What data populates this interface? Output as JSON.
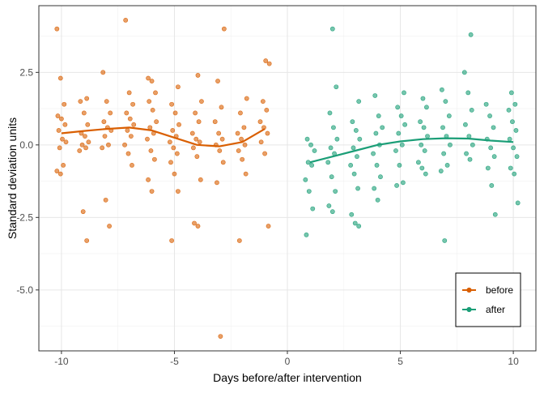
{
  "chart_data": {
    "type": "scatter",
    "title": "",
    "xlabel": "Days before/after intervention",
    "ylabel": "Standard deviation units",
    "xlim": [
      -11,
      11
    ],
    "ylim": [
      -7.1,
      4.8
    ],
    "x_ticks": [
      -10,
      -5,
      0,
      5,
      10
    ],
    "x_tick_labels": [
      "-10",
      "-5",
      "0",
      "5",
      "10"
    ],
    "y_ticks": [
      -5,
      -2.5,
      0,
      2.5
    ],
    "y_tick_labels": [
      "-5.0",
      "-2.5",
      "0.0",
      "2.5"
    ],
    "grid": true,
    "legend": {
      "placement": "bottom-right",
      "entries": [
        "before",
        "after"
      ]
    },
    "series": [
      {
        "name": "before",
        "color": "#D95F02",
        "points": [
          [
            -10,
            4.0
          ],
          [
            -10,
            2.3
          ],
          [
            -10,
            1.4
          ],
          [
            -10,
            1.0
          ],
          [
            -10,
            0.9
          ],
          [
            -10,
            0.7
          ],
          [
            -10,
            0.5
          ],
          [
            -10,
            0.2
          ],
          [
            -10,
            0.1
          ],
          [
            -10,
            -0.1
          ],
          [
            -10,
            -0.7
          ],
          [
            -10,
            -0.9
          ],
          [
            -10,
            -1.0
          ],
          [
            -9,
            1.6
          ],
          [
            -9,
            1.5
          ],
          [
            -9,
            1.1
          ],
          [
            -9,
            0.7
          ],
          [
            -9,
            0.4
          ],
          [
            -9,
            0.3
          ],
          [
            -9,
            0.1
          ],
          [
            -9,
            0.0
          ],
          [
            -9,
            -0.1
          ],
          [
            -9,
            -0.2
          ],
          [
            -9,
            -2.3
          ],
          [
            -9,
            -3.3
          ],
          [
            -8,
            2.5
          ],
          [
            -8,
            1.5
          ],
          [
            -8,
            1.1
          ],
          [
            -8,
            0.8
          ],
          [
            -8,
            0.6
          ],
          [
            -8,
            0.5
          ],
          [
            -8,
            0.3
          ],
          [
            -8,
            0.0
          ],
          [
            -8,
            -0.1
          ],
          [
            -8,
            -1.9
          ],
          [
            -8,
            -2.8
          ],
          [
            -7,
            4.3
          ],
          [
            -7,
            1.8
          ],
          [
            -7,
            1.4
          ],
          [
            -7,
            1.1
          ],
          [
            -7,
            0.9
          ],
          [
            -7,
            0.7
          ],
          [
            -7,
            0.5
          ],
          [
            -7,
            0.3
          ],
          [
            -7,
            0.0
          ],
          [
            -7,
            -0.3
          ],
          [
            -7,
            -0.7
          ],
          [
            -6,
            2.3
          ],
          [
            -6,
            2.2
          ],
          [
            -6,
            1.8
          ],
          [
            -6,
            1.5
          ],
          [
            -6,
            1.2
          ],
          [
            -6,
            0.8
          ],
          [
            -6,
            0.6
          ],
          [
            -6,
            0.4
          ],
          [
            -6,
            0.2
          ],
          [
            -6,
            -0.2
          ],
          [
            -6,
            -0.5
          ],
          [
            -6,
            -1.2
          ],
          [
            -6,
            -1.6
          ],
          [
            -5,
            2.0
          ],
          [
            -5,
            1.4
          ],
          [
            -5,
            1.1
          ],
          [
            -5,
            0.7
          ],
          [
            -5,
            0.5
          ],
          [
            -5,
            0.3
          ],
          [
            -5,
            0.1
          ],
          [
            -5,
            -0.1
          ],
          [
            -5,
            -0.3
          ],
          [
            -5,
            -0.6
          ],
          [
            -5,
            -1.0
          ],
          [
            -5,
            -1.6
          ],
          [
            -5,
            -3.3
          ],
          [
            -4,
            2.4
          ],
          [
            -4,
            1.5
          ],
          [
            -4,
            1.1
          ],
          [
            -4,
            0.8
          ],
          [
            -4,
            0.4
          ],
          [
            -4,
            0.2
          ],
          [
            -4,
            0.1
          ],
          [
            -4,
            -0.1
          ],
          [
            -4,
            -0.4
          ],
          [
            -4,
            -1.2
          ],
          [
            -4,
            -2.7
          ],
          [
            -4,
            -2.8
          ],
          [
            -3,
            4.0
          ],
          [
            -3,
            2.2
          ],
          [
            -3,
            1.3
          ],
          [
            -3,
            0.8
          ],
          [
            -3,
            0.4
          ],
          [
            -3,
            0.2
          ],
          [
            -3,
            0.0
          ],
          [
            -3,
            -0.2
          ],
          [
            -3,
            -0.6
          ],
          [
            -3,
            -1.3
          ],
          [
            -3,
            -6.6
          ],
          [
            -2,
            1.6
          ],
          [
            -2,
            1.1
          ],
          [
            -2,
            0.6
          ],
          [
            -2,
            0.4
          ],
          [
            -2,
            0.2
          ],
          [
            -2,
            0.0
          ],
          [
            -2,
            -0.2
          ],
          [
            -2,
            -0.5
          ],
          [
            -2,
            -1.0
          ],
          [
            -2,
            -3.3
          ],
          [
            -1,
            2.9
          ],
          [
            -1,
            2.8
          ],
          [
            -1,
            1.5
          ],
          [
            -1,
            1.2
          ],
          [
            -1,
            0.8
          ],
          [
            -1,
            0.6
          ],
          [
            -1,
            0.4
          ],
          [
            -1,
            0.1
          ],
          [
            -1,
            -0.3
          ],
          [
            -1,
            -2.8
          ]
        ],
        "trend": [
          [
            -10,
            0.4
          ],
          [
            -9,
            0.48
          ],
          [
            -8,
            0.55
          ],
          [
            -7,
            0.6
          ],
          [
            -6,
            0.5
          ],
          [
            -5,
            0.25
          ],
          [
            -4,
            0.0
          ],
          [
            -3,
            -0.05
          ],
          [
            -2,
            0.1
          ],
          [
            -1,
            0.55
          ]
        ]
      },
      {
        "name": "after",
        "color": "#1B9E77",
        "points": [
          [
            1,
            0.2
          ],
          [
            1,
            0.0
          ],
          [
            1,
            -0.2
          ],
          [
            1,
            -0.6
          ],
          [
            1,
            -0.7
          ],
          [
            1,
            -1.2
          ],
          [
            1,
            -1.6
          ],
          [
            1,
            -2.2
          ],
          [
            1,
            -3.1
          ],
          [
            2,
            4.0
          ],
          [
            2,
            2.0
          ],
          [
            2,
            1.1
          ],
          [
            2,
            0.6
          ],
          [
            2,
            0.2
          ],
          [
            2,
            -0.1
          ],
          [
            2,
            -0.3
          ],
          [
            2,
            -0.6
          ],
          [
            2,
            -1.1
          ],
          [
            2,
            -1.6
          ],
          [
            2,
            -2.1
          ],
          [
            2,
            -2.3
          ],
          [
            3,
            1.5
          ],
          [
            3,
            0.8
          ],
          [
            3,
            0.5
          ],
          [
            3,
            0.2
          ],
          [
            3,
            -0.1
          ],
          [
            3,
            -0.4
          ],
          [
            3,
            -0.7
          ],
          [
            3,
            -1.0
          ],
          [
            3,
            -1.5
          ],
          [
            3,
            -2.4
          ],
          [
            3,
            -2.7
          ],
          [
            3,
            -2.8
          ],
          [
            4,
            1.7
          ],
          [
            4,
            1.0
          ],
          [
            4,
            0.6
          ],
          [
            4,
            0.4
          ],
          [
            4,
            0.0
          ],
          [
            4,
            -0.3
          ],
          [
            4,
            -0.7
          ],
          [
            4,
            -1.1
          ],
          [
            4,
            -1.5
          ],
          [
            4,
            -1.9
          ],
          [
            5,
            1.8
          ],
          [
            5,
            1.3
          ],
          [
            5,
            1.0
          ],
          [
            5,
            0.7
          ],
          [
            5,
            0.4
          ],
          [
            5,
            0.0
          ],
          [
            5,
            -0.2
          ],
          [
            5,
            -0.7
          ],
          [
            5,
            -1.3
          ],
          [
            5,
            -1.4
          ],
          [
            6,
            1.6
          ],
          [
            6,
            1.3
          ],
          [
            6,
            0.8
          ],
          [
            6,
            0.6
          ],
          [
            6,
            0.3
          ],
          [
            6,
            0.0
          ],
          [
            6,
            -0.2
          ],
          [
            6,
            -0.6
          ],
          [
            6,
            -0.8
          ],
          [
            6,
            -1.0
          ],
          [
            7,
            1.9
          ],
          [
            7,
            1.5
          ],
          [
            7,
            1.0
          ],
          [
            7,
            0.6
          ],
          [
            7,
            0.3
          ],
          [
            7,
            0.0
          ],
          [
            7,
            -0.3
          ],
          [
            7,
            -0.7
          ],
          [
            7,
            -0.9
          ],
          [
            7,
            -3.3
          ],
          [
            8,
            3.8
          ],
          [
            8,
            2.5
          ],
          [
            8,
            1.8
          ],
          [
            8,
            1.2
          ],
          [
            8,
            0.7
          ],
          [
            8,
            0.3
          ],
          [
            8,
            0.0
          ],
          [
            8,
            -0.3
          ],
          [
            8,
            -0.5
          ],
          [
            9,
            1.4
          ],
          [
            9,
            1.0
          ],
          [
            9,
            0.6
          ],
          [
            9,
            0.2
          ],
          [
            9,
            -0.1
          ],
          [
            9,
            -0.4
          ],
          [
            9,
            -0.8
          ],
          [
            9,
            -1.4
          ],
          [
            9,
            -2.4
          ],
          [
            10,
            1.8
          ],
          [
            10,
            1.4
          ],
          [
            10,
            1.2
          ],
          [
            10,
            0.8
          ],
          [
            10,
            0.5
          ],
          [
            10,
            0.2
          ],
          [
            10,
            -0.1
          ],
          [
            10,
            -0.4
          ],
          [
            10,
            -0.8
          ],
          [
            10,
            -1.0
          ],
          [
            10,
            -2.0
          ]
        ],
        "trend": [
          [
            1,
            -0.6
          ],
          [
            2,
            -0.4
          ],
          [
            3,
            -0.2
          ],
          [
            4,
            0.0
          ],
          [
            5,
            0.12
          ],
          [
            6,
            0.2
          ],
          [
            7,
            0.23
          ],
          [
            8,
            0.22
          ],
          [
            9,
            0.15
          ],
          [
            10,
            0.1
          ]
        ]
      }
    ]
  }
}
